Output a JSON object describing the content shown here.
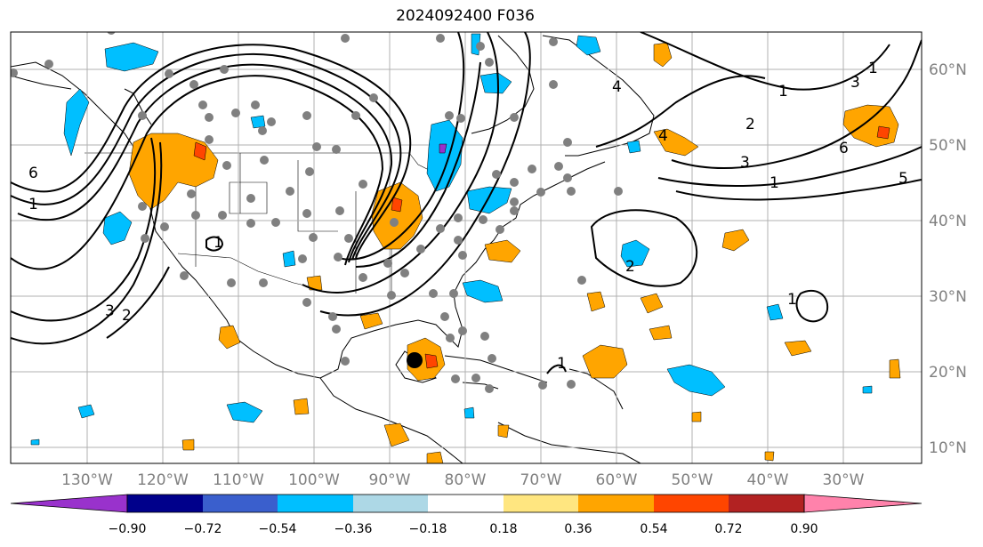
{
  "title": "2024092400 F036",
  "map": {
    "projection": "plate-carree",
    "lon_range": [
      -139,
      -18
    ],
    "lat_range": [
      8,
      65
    ],
    "gridlines": true,
    "lon_ticks": [
      "130°W",
      "120°W",
      "110°W",
      "100°W",
      "90°W",
      "80°W",
      "70°W",
      "60°W",
      "50°W",
      "40°W",
      "30°W"
    ],
    "lat_ticks": [
      "60°N",
      "50°N",
      "40°N",
      "30°N",
      "20°N",
      "10°N"
    ]
  },
  "colorbar": {
    "labels": [
      "−0.90",
      "−0.72",
      "−0.54",
      "−0.36",
      "−0.18",
      "0.18",
      "0.36",
      "0.54",
      "0.72",
      "0.90"
    ],
    "colors": [
      "#9932cc",
      "#00008b",
      "#3a5fcd",
      "#00bfff",
      "#add8e6",
      "#ffffff",
      "#ffe680",
      "#ffa500",
      "#ff4500",
      "#b22222",
      "#ff82ab"
    ]
  },
  "contour_labels": [
    "6",
    "1",
    "3",
    "2",
    "1",
    "1",
    "4",
    "2",
    "3",
    "6",
    "5",
    "1",
    "2",
    "3",
    "4",
    "1",
    "1",
    "1"
  ],
  "storm_marker": {
    "lon": -85.5,
    "lat": 21.8,
    "color": "#000000"
  }
}
